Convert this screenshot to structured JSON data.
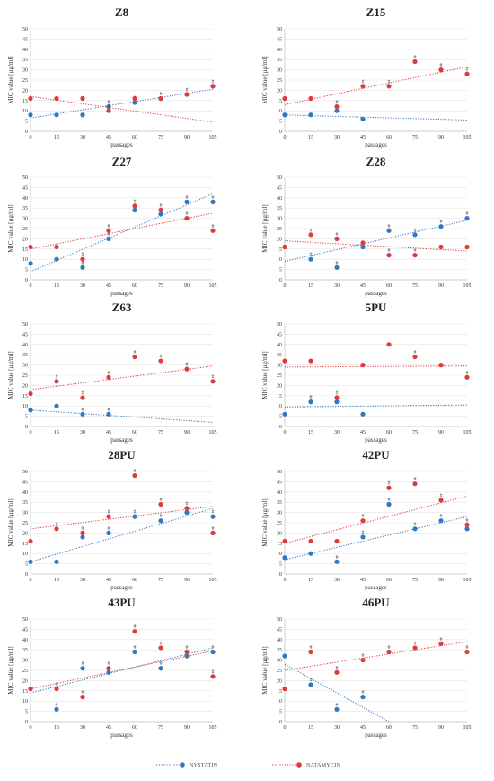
{
  "legend": {
    "nystatin": "NYSTATIN",
    "natamycin": "NATAMYCIN"
  },
  "colors": {
    "nystatin": "#2f79c4",
    "natamycin": "#e0393e",
    "grid": "#e3e3e3",
    "axis": "#bdbdbd"
  },
  "chart_data": [
    {
      "type": "scatter",
      "title": "Z8",
      "xlabel": "passages",
      "ylabel": "MIC value [µg/ml]",
      "x": [
        0,
        15,
        30,
        45,
        60,
        75,
        90,
        105
      ],
      "ylim": [
        0,
        50
      ],
      "yticks": [
        0,
        5,
        10,
        15,
        20,
        25,
        30,
        35,
        40,
        45,
        50
      ],
      "grid": true,
      "series": [
        {
          "name": "NYSTATIN",
          "values": [
            8,
            8,
            8,
            12,
            14,
            16,
            18,
            22
          ],
          "marked": [
            false,
            false,
            false,
            true,
            true,
            true,
            true,
            true
          ],
          "trend": [
            6.5,
            20.5
          ]
        },
        {
          "name": "NATAMYCIN",
          "values": [
            16,
            16,
            16,
            10,
            16,
            16,
            18,
            22
          ],
          "marked": [
            false,
            false,
            false,
            true,
            false,
            false,
            false,
            false
          ],
          "trend": [
            17,
            4.5
          ]
        }
      ]
    },
    {
      "type": "scatter",
      "title": "Z15",
      "xlabel": "passages",
      "ylabel": "MIC value [µg/ml]",
      "x": [
        0,
        15,
        30,
        45,
        60,
        75,
        90,
        105
      ],
      "ylim": [
        0,
        50
      ],
      "yticks": [
        0,
        5,
        10,
        15,
        20,
        25,
        30,
        35,
        40,
        45,
        50
      ],
      "grid": true,
      "series": [
        {
          "name": "NYSTATIN",
          "values": [
            8,
            8,
            10,
            6,
            null,
            null,
            null,
            null
          ],
          "marked": [
            false,
            false,
            true,
            false,
            false,
            false,
            false,
            false
          ],
          "trend": [
            8,
            5.5
          ]
        },
        {
          "name": "NATAMYCIN",
          "values": [
            16,
            16,
            12,
            22,
            22,
            34,
            30,
            28
          ],
          "marked": [
            false,
            false,
            true,
            true,
            true,
            true,
            true,
            true
          ],
          "trend": [
            13,
            31.5
          ]
        }
      ]
    },
    {
      "type": "scatter",
      "title": "Z27",
      "xlabel": "passages",
      "ylabel": "MIC value [µg/ml]",
      "x": [
        0,
        15,
        30,
        45,
        60,
        75,
        90,
        105
      ],
      "ylim": [
        0,
        50
      ],
      "yticks": [
        0,
        5,
        10,
        15,
        20,
        25,
        30,
        35,
        40,
        45,
        50
      ],
      "grid": true,
      "series": [
        {
          "name": "NYSTATIN",
          "values": [
            8,
            10,
            6,
            20,
            34,
            32,
            38,
            38
          ],
          "marked": [
            false,
            false,
            true,
            true,
            true,
            true,
            true,
            true
          ],
          "trend": [
            4,
            42
          ]
        },
        {
          "name": "NATAMYCIN",
          "values": [
            16,
            16,
            10,
            24,
            36,
            34,
            30,
            24
          ],
          "marked": [
            false,
            false,
            true,
            true,
            true,
            true,
            true,
            true
          ],
          "trend": [
            15,
            32.5
          ]
        }
      ]
    },
    {
      "type": "scatter",
      "title": "Z28",
      "xlabel": "passages",
      "ylabel": "MIC value [µg/ml]",
      "x": [
        0,
        15,
        30,
        45,
        60,
        75,
        90,
        105
      ],
      "ylim": [
        0,
        50
      ],
      "yticks": [
        0,
        5,
        10,
        15,
        20,
        25,
        30,
        35,
        40,
        45,
        50
      ],
      "grid": true,
      "series": [
        {
          "name": "NYSTATIN",
          "values": [
            16,
            10,
            6,
            16,
            24,
            22,
            26,
            30
          ],
          "marked": [
            false,
            true,
            true,
            true,
            true,
            true,
            true,
            true
          ],
          "trend": [
            9,
            29
          ]
        },
        {
          "name": "NATAMYCIN",
          "values": [
            16,
            22,
            20,
            18,
            12,
            12,
            16,
            16
          ],
          "marked": [
            false,
            true,
            true,
            false,
            true,
            true,
            false,
            false
          ],
          "trend": [
            19,
            14
          ]
        }
      ]
    },
    {
      "type": "scatter",
      "title": "Z63",
      "xlabel": "passages",
      "ylabel": "MIC value [µg/ml]",
      "x": [
        0,
        15,
        30,
        45,
        60,
        75,
        90,
        105
      ],
      "ylim": [
        0,
        50
      ],
      "yticks": [
        0,
        5,
        10,
        15,
        20,
        25,
        30,
        35,
        40,
        45,
        50
      ],
      "grid": true,
      "series": [
        {
          "name": "NYSTATIN",
          "values": [
            8,
            10,
            6,
            6,
            null,
            null,
            null,
            null
          ],
          "marked": [
            false,
            false,
            true,
            true,
            false,
            false,
            false,
            false
          ],
          "trend": [
            8,
            2
          ]
        },
        {
          "name": "NATAMYCIN",
          "values": [
            16,
            22,
            14,
            24,
            34,
            32,
            28,
            22
          ],
          "marked": [
            false,
            true,
            true,
            true,
            true,
            true,
            true,
            true
          ],
          "trend": [
            18,
            29.5
          ]
        }
      ]
    },
    {
      "type": "scatter",
      "title": "5PU",
      "xlabel": "passages",
      "ylabel": "MIC value [µg/ml]",
      "x": [
        0,
        15,
        30,
        45,
        60,
        75,
        90,
        105
      ],
      "ylim": [
        0,
        50
      ],
      "yticks": [
        0,
        5,
        10,
        15,
        20,
        25,
        30,
        35,
        40,
        45,
        50
      ],
      "grid": true,
      "series": [
        {
          "name": "NYSTATIN",
          "values": [
            6,
            12,
            12,
            6,
            null,
            null,
            null,
            null
          ],
          "marked": [
            false,
            true,
            true,
            false,
            false,
            false,
            false,
            false
          ],
          "trend": [
            9.5,
            10.5
          ]
        },
        {
          "name": "NATAMYCIN",
          "values": [
            32,
            32,
            14,
            30,
            40,
            34,
            30,
            24
          ],
          "marked": [
            false,
            false,
            true,
            false,
            false,
            true,
            false,
            true
          ],
          "trend": [
            29,
            29.5
          ]
        }
      ]
    },
    {
      "type": "scatter",
      "title": "28PU",
      "xlabel": "passages",
      "ylabel": "MIC value [µg/ml]",
      "x": [
        0,
        15,
        30,
        45,
        60,
        75,
        90,
        105
      ],
      "ylim": [
        0,
        50
      ],
      "yticks": [
        0,
        5,
        10,
        15,
        20,
        25,
        30,
        35,
        40,
        45,
        50
      ],
      "grid": true,
      "series": [
        {
          "name": "NYSTATIN",
          "values": [
            6,
            6,
            18,
            20,
            28,
            26,
            30,
            28
          ],
          "marked": [
            false,
            false,
            true,
            true,
            true,
            true,
            true,
            true
          ],
          "trend": [
            6,
            32
          ]
        },
        {
          "name": "NATAMYCIN",
          "values": [
            16,
            22,
            20,
            28,
            48,
            34,
            32,
            20
          ],
          "marked": [
            false,
            true,
            true,
            true,
            true,
            true,
            true,
            true
          ],
          "trend": [
            22,
            33
          ]
        }
      ]
    },
    {
      "type": "scatter",
      "title": "42PU",
      "xlabel": "passages",
      "ylabel": "MIC value [µg/ml]",
      "x": [
        0,
        15,
        30,
        45,
        60,
        75,
        90,
        105
      ],
      "ylim": [
        0,
        50
      ],
      "yticks": [
        0,
        5,
        10,
        15,
        20,
        25,
        30,
        35,
        40,
        45,
        50
      ],
      "grid": true,
      "series": [
        {
          "name": "NYSTATIN",
          "values": [
            8,
            10,
            6,
            18,
            34,
            22,
            26,
            22
          ],
          "marked": [
            false,
            false,
            true,
            true,
            true,
            true,
            true,
            true
          ],
          "trend": [
            7,
            28
          ]
        },
        {
          "name": "NATAMYCIN",
          "values": [
            16,
            16,
            16,
            26,
            42,
            44,
            36,
            24
          ],
          "marked": [
            false,
            false,
            false,
            true,
            true,
            true,
            true,
            true
          ],
          "trend": [
            15,
            38
          ]
        }
      ]
    },
    {
      "type": "scatter",
      "title": "43PU",
      "xlabel": "passages",
      "ylabel": "MIC value [µg/ml]",
      "x": [
        0,
        15,
        30,
        45,
        60,
        75,
        90,
        105
      ],
      "ylim": [
        0,
        50
      ],
      "yticks": [
        0,
        5,
        10,
        15,
        20,
        25,
        30,
        35,
        40,
        45,
        50
      ],
      "grid": true,
      "series": [
        {
          "name": "NYSTATIN",
          "values": [
            16,
            6,
            26,
            24,
            34,
            26,
            32,
            34
          ],
          "marked": [
            false,
            true,
            true,
            true,
            true,
            true,
            true,
            true
          ],
          "trend": [
            14,
            36
          ]
        },
        {
          "name": "NATAMYCIN",
          "values": [
            16,
            16,
            12,
            26,
            44,
            36,
            34,
            22
          ],
          "marked": [
            false,
            true,
            true,
            true,
            true,
            true,
            true,
            true
          ],
          "trend": [
            16,
            34.5
          ]
        }
      ]
    },
    {
      "type": "scatter",
      "title": "46PU",
      "xlabel": "passages",
      "ylabel": "MIC value [µg/ml]",
      "x": [
        0,
        15,
        30,
        45,
        60,
        75,
        90,
        105
      ],
      "ylim": [
        0,
        50
      ],
      "yticks": [
        0,
        5,
        10,
        15,
        20,
        25,
        30,
        35,
        40,
        45,
        50
      ],
      "grid": true,
      "series": [
        {
          "name": "NYSTATIN",
          "values": [
            32,
            18,
            6,
            12,
            null,
            null,
            null,
            null
          ],
          "marked": [
            false,
            true,
            true,
            true,
            false,
            false,
            false,
            false
          ],
          "trend": [
            28,
            0
          ],
          "trend_end_x": 60
        },
        {
          "name": "NATAMYCIN",
          "values": [
            16,
            34,
            24,
            30,
            34,
            36,
            38,
            34
          ],
          "marked": [
            false,
            true,
            true,
            true,
            true,
            true,
            true,
            true
          ],
          "trend": [
            25,
            39
          ]
        }
      ]
    }
  ]
}
